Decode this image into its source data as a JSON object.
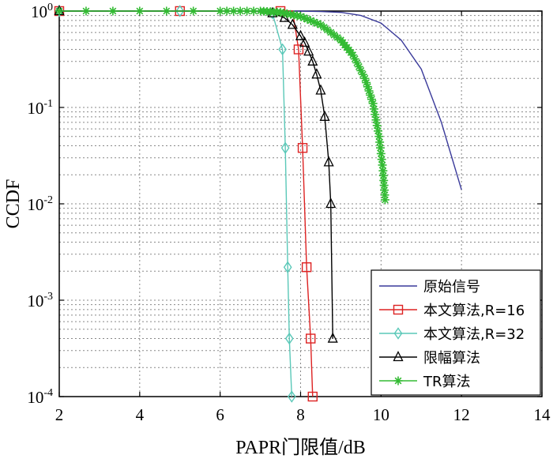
{
  "chart_data": {
    "type": "line",
    "xlabel": "PAPR门限值/dB",
    "ylabel": "CCDF",
    "xlim": [
      2,
      14
    ],
    "ylim": [
      0.0001,
      1
    ],
    "yscale": "log",
    "grid": true,
    "legend_position": "bottom-right",
    "x_ticks": [
      "2",
      "4",
      "6",
      "8",
      "10",
      "12",
      "14"
    ],
    "y_ticks": [
      {
        "base": "10",
        "exp": "0",
        "value": 1
      },
      {
        "base": "10",
        "exp": "-1",
        "value": 0.1
      },
      {
        "base": "10",
        "exp": "-2",
        "value": 0.01
      },
      {
        "base": "10",
        "exp": "-3",
        "value": 0.001
      },
      {
        "base": "10",
        "exp": "-4",
        "value": 0.0001
      }
    ],
    "series": [
      {
        "name": "原始信号",
        "color": "#3a3a9a",
        "marker": "none",
        "x": [
          2,
          6,
          7,
          8,
          8.5,
          9,
          9.5,
          10,
          10.5,
          11,
          11.5,
          12
        ],
        "y": [
          1,
          1,
          1,
          0.999,
          0.99,
          0.97,
          0.9,
          0.75,
          0.5,
          0.25,
          0.07,
          0.014
        ]
      },
      {
        "name": "本文算法,R=16",
        "color": "#dd2222",
        "marker": "square",
        "x": [
          2,
          3,
          4,
          5,
          6,
          7,
          7.5,
          7.8,
          7.95,
          8.05,
          8.15,
          8.25,
          8.3
        ],
        "y": [
          1,
          1,
          1,
          1,
          1,
          1,
          1,
          1,
          0.4,
          0.038,
          0.0022,
          0.0004,
          0.0001
        ]
      },
      {
        "name": "本文算法,R=32",
        "color": "#5ac8b8",
        "marker": "diamond",
        "x": [
          2,
          3,
          4,
          5,
          6,
          7,
          7.3,
          7.55,
          7.62,
          7.68,
          7.72,
          7.78
        ],
        "y": [
          1,
          1,
          1,
          1,
          1,
          1,
          0.95,
          0.4,
          0.038,
          0.0022,
          0.0004,
          0.0001
        ]
      },
      {
        "name": "限幅算法",
        "color": "#000000",
        "marker": "triangle",
        "x": [
          2,
          6.5,
          7,
          7.3,
          7.6,
          7.8,
          8,
          8.1,
          8.2,
          8.3,
          8.4,
          8.5,
          8.6,
          8.7,
          8.75,
          8.8
        ],
        "y": [
          1,
          1,
          0.99,
          0.95,
          0.85,
          0.72,
          0.55,
          0.47,
          0.38,
          0.3,
          0.22,
          0.15,
          0.08,
          0.027,
          0.01,
          0.0004
        ]
      },
      {
        "name": "TR算法",
        "color": "#33bb33",
        "marker": "star",
        "x": [
          2,
          6,
          7,
          7.5,
          8,
          8.5,
          9,
          9.3,
          9.6,
          9.8,
          9.95,
          10.05,
          10.1
        ],
        "y": [
          1,
          1,
          1,
          0.97,
          0.88,
          0.72,
          0.5,
          0.35,
          0.2,
          0.11,
          0.05,
          0.022,
          0.011
        ]
      }
    ]
  }
}
